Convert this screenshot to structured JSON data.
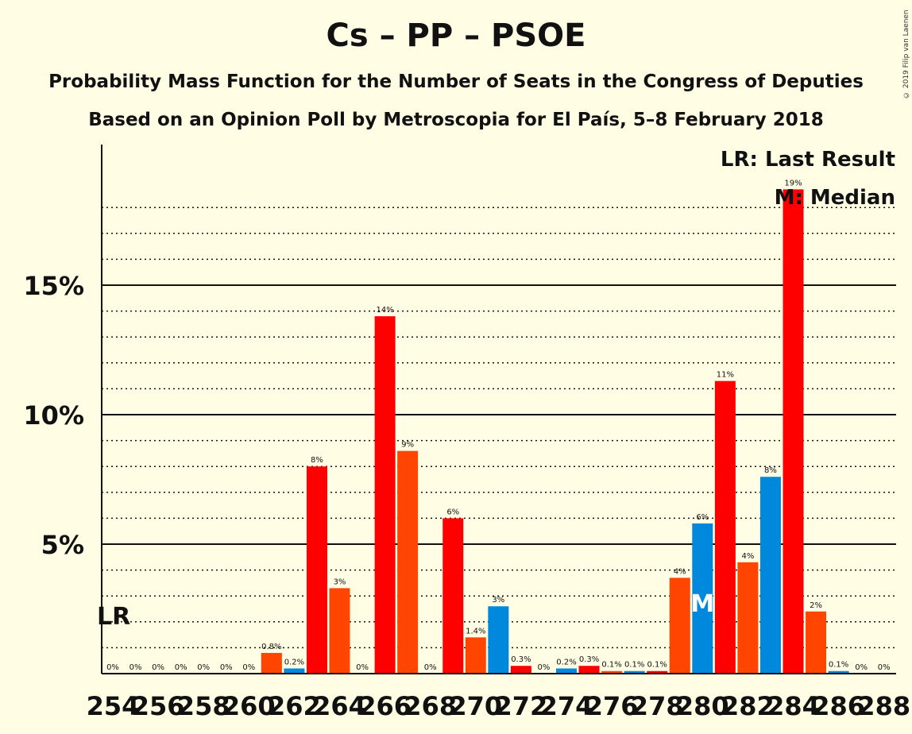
{
  "header": {
    "title": "Cs – PP – PSOE",
    "subtitle1": "Probability Mass Function for the Number of Seats in the Congress of Deputies",
    "subtitle2": "Based on an Opinion Poll by Metroscopia for El País, 5–8 February 2018",
    "copyright": "© 2019 Filip van Laenen"
  },
  "legend": {
    "last_result": "LR: Last Result",
    "median": "M: Median"
  },
  "markers": {
    "last_result_label": "LR",
    "last_result_seat": 254,
    "median_label": "M",
    "median_seat": 280
  },
  "chart_data": {
    "type": "bar",
    "title": "Cs – PP – PSOE",
    "xlabel": "",
    "ylabel": "",
    "ylim": [
      0,
      20
    ],
    "yticks": [
      5,
      10,
      15
    ],
    "ytick_labels": [
      "5%",
      "10%",
      "15%"
    ],
    "xtick_labels": [
      "254",
      "256",
      "258",
      "260",
      "262",
      "264",
      "266",
      "268",
      "270",
      "272",
      "274",
      "276",
      "278",
      "280",
      "282",
      "284",
      "286",
      "288"
    ],
    "grid": true,
    "legend_position": "top-right",
    "colors": {
      "red": "#FF0000",
      "orange": "#FF4500",
      "blue": "#0088DD"
    },
    "categories": [
      254,
      255,
      256,
      257,
      258,
      259,
      260,
      261,
      262,
      263,
      264,
      265,
      266,
      267,
      268,
      269,
      270,
      271,
      272,
      273,
      274,
      275,
      276,
      277,
      278,
      279,
      280,
      281,
      282,
      283,
      284,
      285,
      286,
      287,
      288
    ],
    "values": [
      0,
      0,
      0,
      0,
      0,
      0,
      0,
      0.8,
      0.2,
      8,
      3.3,
      0,
      13.8,
      8.6,
      0,
      6,
      1.4,
      2.6,
      0.3,
      0,
      0.2,
      0.3,
      0.1,
      0.1,
      0.1,
      3.7,
      5.8,
      11.3,
      4.3,
      7.6,
      18.7,
      2.4,
      0.1,
      0,
      0
    ],
    "labels": [
      "0%",
      "0%",
      "0%",
      "0%",
      "0%",
      "0%",
      "0%",
      "0.8%",
      "0.2%",
      "8%",
      "3%",
      "0%",
      "14%",
      "9%",
      "0%",
      "6%",
      "1.4%",
      "3%",
      "0.3%",
      "0%",
      "0.2%",
      "0.3%",
      "0.1%",
      "0.1%",
      "0.1%",
      "4%",
      "6%",
      "11%",
      "4%",
      "8%",
      "19%",
      "2%",
      "0.1%",
      "0%",
      "0%"
    ],
    "bar_colors": [
      "red",
      "orange",
      "blue",
      "red",
      "orange",
      "blue",
      "red",
      "orange",
      "blue",
      "red",
      "orange",
      "blue",
      "red",
      "orange",
      "blue",
      "red",
      "orange",
      "blue",
      "red",
      "orange",
      "blue",
      "red",
      "orange",
      "blue",
      "red",
      "orange",
      "blue",
      "red",
      "orange",
      "blue",
      "red",
      "orange",
      "blue",
      "red",
      "orange"
    ]
  }
}
